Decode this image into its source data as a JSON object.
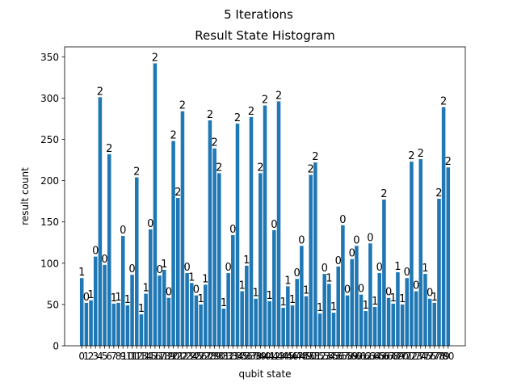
{
  "figure": {
    "suptitle": "5 Iterations"
  },
  "chart_data": {
    "type": "bar",
    "title": "Result State Histogram",
    "xlabel": "qubit state",
    "ylabel": "result count",
    "ylim": [
      0,
      362
    ],
    "yticks": [
      0,
      50,
      100,
      150,
      200,
      250,
      300,
      350
    ],
    "grid": false,
    "bar_color": "#1f77b4",
    "categories": [
      "0",
      "1",
      "2",
      "3",
      "4",
      "5",
      "6",
      "7",
      "8",
      "9",
      "10",
      "11",
      "12",
      "13",
      "14",
      "15",
      "16",
      "17",
      "18",
      "19",
      "20",
      "21",
      "22",
      "23",
      "24",
      "25",
      "26",
      "27",
      "28",
      "29",
      "30",
      "31",
      "32",
      "33",
      "34",
      "35",
      "36",
      "37",
      "38",
      "39",
      "40",
      "41",
      "42",
      "43",
      "44",
      "45",
      "46",
      "47",
      "48",
      "49",
      "50",
      "51",
      "52",
      "53",
      "54",
      "55",
      "56",
      "57",
      "58",
      "59",
      "60",
      "61",
      "62",
      "63",
      "64",
      "65",
      "66",
      "67",
      "68",
      "69",
      "70",
      "71",
      "72",
      "73",
      "74",
      "75",
      "76",
      "77",
      "78",
      "79",
      "80"
    ],
    "tick_labels": [
      "0",
      "1",
      "2",
      "3",
      "4",
      "5",
      "6",
      "7",
      "8",
      "9",
      "10",
      "11",
      "12",
      "13",
      "14",
      "15",
      "16",
      "17",
      "18",
      "19",
      "20",
      "21",
      "22",
      "23",
      "24",
      "25",
      "26",
      "27",
      "28",
      "29",
      "30",
      "31",
      "32",
      "33",
      "34",
      "35",
      "36",
      "37",
      "38",
      "39",
      "40",
      "41",
      "42",
      "43",
      "44",
      "45",
      "46",
      "47",
      "48",
      "49",
      "50",
      "51",
      "52",
      "53",
      "54",
      "55",
      "56",
      "57",
      "58",
      "59",
      "60",
      "61",
      "62",
      "63",
      "64",
      "65",
      "66",
      "67",
      "68",
      "69",
      "70",
      "71",
      "72",
      "73",
      "74",
      "75",
      "76",
      "77",
      "78",
      "79",
      "80"
    ],
    "values": [
      82,
      52,
      55,
      108,
      301,
      98,
      232,
      51,
      52,
      133,
      49,
      86,
      204,
      38,
      63,
      141,
      342,
      85,
      92,
      58,
      248,
      179,
      284,
      88,
      76,
      61,
      50,
      74,
      273,
      239,
      209,
      45,
      88,
      134,
      269,
      66,
      97,
      277,
      57,
      209,
      291,
      54,
      140,
      296,
      46,
      72,
      49,
      81,
      121,
      60,
      207,
      222,
      39,
      87,
      75,
      40,
      96,
      146,
      61,
      105,
      121,
      62,
      42,
      124,
      47,
      88,
      177,
      58,
      51,
      89,
      50,
      82,
      223,
      66,
      226,
      87,
      57,
      52,
      178,
      289,
      216
    ],
    "data_labels": [
      "1",
      "0",
      "1",
      "0",
      "2",
      "0",
      "2",
      "1",
      "1",
      "0",
      "1",
      "0",
      "2",
      "1",
      "1",
      "0",
      "2",
      "0",
      "1",
      "0",
      "2",
      "2",
      "2",
      "0",
      "1",
      "0",
      "1",
      "1",
      "2",
      "2",
      "2",
      "1",
      "0",
      "0",
      "2",
      "1",
      "1",
      "2",
      "1",
      "2",
      "2",
      "1",
      "0",
      "2",
      "1",
      "1",
      "1",
      "0",
      "0",
      "1",
      "2",
      "2",
      "1",
      "0",
      "1",
      "1",
      "0",
      "0",
      "0",
      "0",
      "0",
      "0",
      "1",
      "0",
      "1",
      "0",
      "2",
      "0",
      "1",
      "1",
      "1",
      "0",
      "2",
      "0",
      "2",
      "1",
      "0",
      "1",
      "2",
      "2",
      "2"
    ]
  }
}
